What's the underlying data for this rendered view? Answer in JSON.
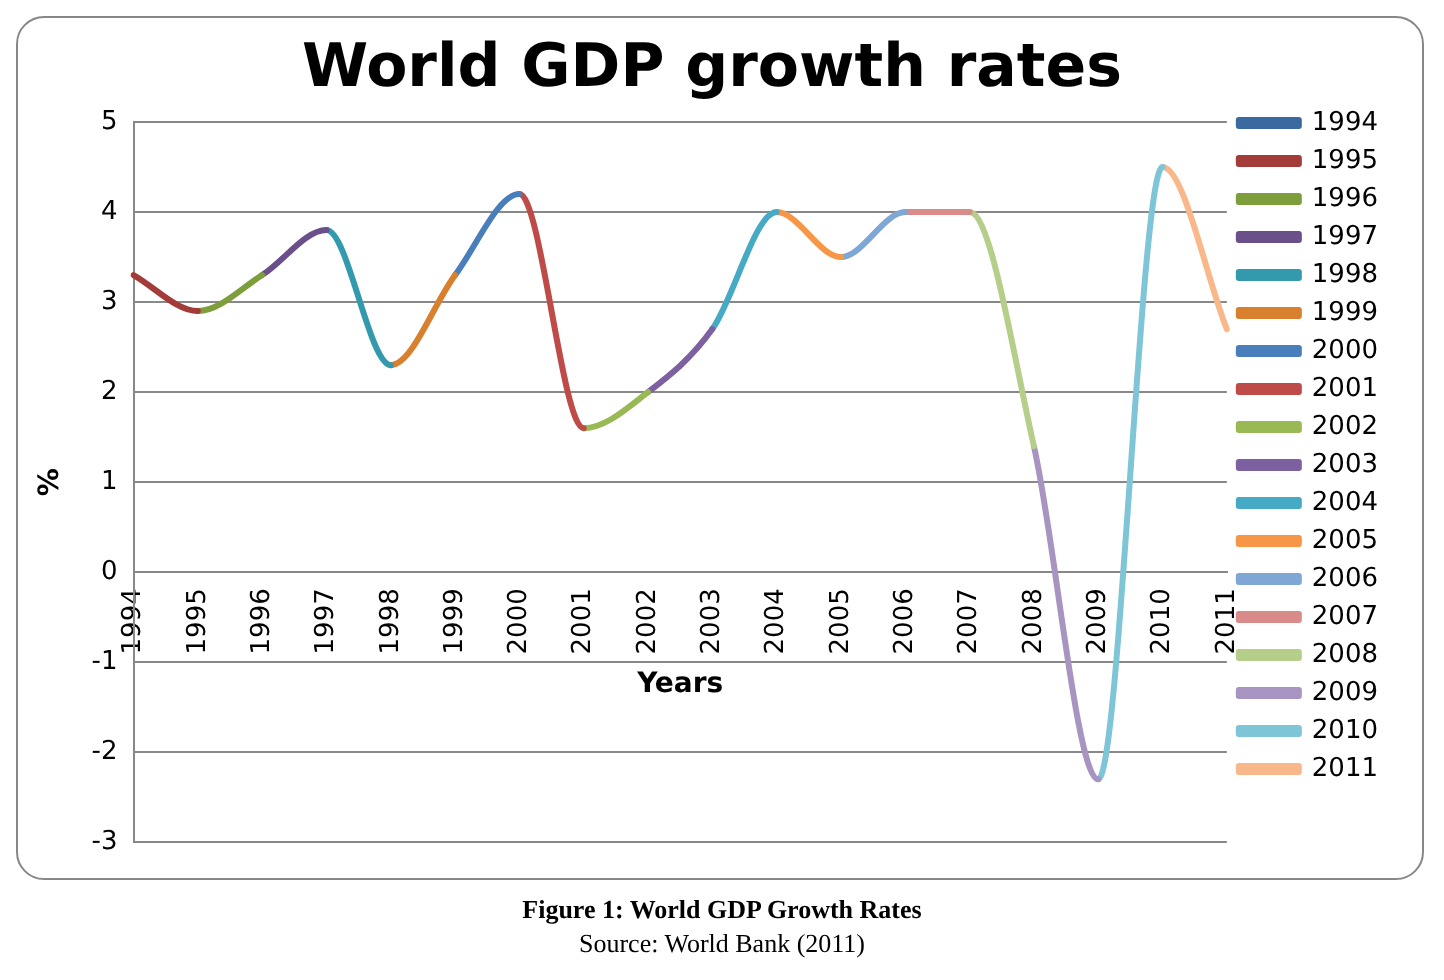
{
  "chart_data": {
    "type": "line",
    "title": "World GDP growth rates",
    "xlabel": "Years",
    "ylabel": "%",
    "categories": [
      "1994",
      "1995",
      "1996",
      "1997",
      "1998",
      "1999",
      "2000",
      "2001",
      "2002",
      "2003",
      "2004",
      "2005",
      "2006",
      "2007",
      "2008",
      "2009",
      "2010",
      "2011"
    ],
    "series": [
      {
        "name": "1994",
        "color": "#3b6aa0",
        "values": [
          null,
          null,
          null,
          null,
          null,
          null,
          null,
          null,
          null,
          null,
          null,
          null,
          null,
          null,
          null,
          null,
          null,
          null
        ]
      },
      {
        "name": "1995",
        "color": "#a33b38",
        "values": [
          3.3,
          2.9,
          null,
          null,
          null,
          null,
          null,
          null,
          null,
          null,
          null,
          null,
          null,
          null,
          null,
          null,
          null,
          null
        ]
      },
      {
        "name": "1996",
        "color": "#7e9e3c",
        "values": [
          null,
          2.9,
          3.3,
          null,
          null,
          null,
          null,
          null,
          null,
          null,
          null,
          null,
          null,
          null,
          null,
          null,
          null,
          null
        ]
      },
      {
        "name": "1997",
        "color": "#6a4f8a",
        "values": [
          null,
          null,
          3.3,
          3.8,
          null,
          null,
          null,
          null,
          null,
          null,
          null,
          null,
          null,
          null,
          null,
          null,
          null,
          null
        ]
      },
      {
        "name": "1998",
        "color": "#339aae",
        "values": [
          null,
          null,
          null,
          3.8,
          2.3,
          null,
          null,
          null,
          null,
          null,
          null,
          null,
          null,
          null,
          null,
          null,
          null,
          null
        ]
      },
      {
        "name": "1999",
        "color": "#d9802f",
        "values": [
          null,
          null,
          null,
          null,
          2.3,
          3.3,
          null,
          null,
          null,
          null,
          null,
          null,
          null,
          null,
          null,
          null,
          null,
          null
        ]
      },
      {
        "name": "2000",
        "color": "#4a7ebb",
        "values": [
          null,
          null,
          null,
          null,
          null,
          3.3,
          4.2,
          null,
          null,
          null,
          null,
          null,
          null,
          null,
          null,
          null,
          null,
          null
        ]
      },
      {
        "name": "2001",
        "color": "#be4b48",
        "values": [
          null,
          null,
          null,
          null,
          null,
          null,
          4.2,
          1.6,
          null,
          null,
          null,
          null,
          null,
          null,
          null,
          null,
          null,
          null
        ]
      },
      {
        "name": "2002",
        "color": "#98b954",
        "values": [
          null,
          null,
          null,
          null,
          null,
          null,
          null,
          1.6,
          2.0,
          null,
          null,
          null,
          null,
          null,
          null,
          null,
          null,
          null
        ]
      },
      {
        "name": "2003",
        "color": "#7d60a0",
        "values": [
          null,
          null,
          null,
          null,
          null,
          null,
          null,
          null,
          2.0,
          2.7,
          null,
          null,
          null,
          null,
          null,
          null,
          null,
          null
        ]
      },
      {
        "name": "2004",
        "color": "#46aac5",
        "values": [
          null,
          null,
          null,
          null,
          null,
          null,
          null,
          null,
          null,
          2.7,
          4.0,
          null,
          null,
          null,
          null,
          null,
          null,
          null
        ]
      },
      {
        "name": "2005",
        "color": "#f79646",
        "values": [
          null,
          null,
          null,
          null,
          null,
          null,
          null,
          null,
          null,
          null,
          4.0,
          3.5,
          null,
          null,
          null,
          null,
          null,
          null
        ]
      },
      {
        "name": "2006",
        "color": "#7fa7d6",
        "values": [
          null,
          null,
          null,
          null,
          null,
          null,
          null,
          null,
          null,
          null,
          null,
          3.5,
          4.0,
          null,
          null,
          null,
          null,
          null
        ]
      },
      {
        "name": "2007",
        "color": "#d98b89",
        "values": [
          null,
          null,
          null,
          null,
          null,
          null,
          null,
          null,
          null,
          null,
          null,
          null,
          4.0,
          4.0,
          null,
          null,
          null,
          null
        ]
      },
      {
        "name": "2008",
        "color": "#b5cf8a",
        "values": [
          null,
          null,
          null,
          null,
          null,
          null,
          null,
          null,
          null,
          null,
          null,
          null,
          null,
          4.0,
          1.4,
          null,
          null,
          null
        ]
      },
      {
        "name": "2009",
        "color": "#a794c0",
        "values": [
          null,
          null,
          null,
          null,
          null,
          null,
          null,
          null,
          null,
          null,
          null,
          null,
          null,
          null,
          1.4,
          -2.3,
          null,
          null
        ]
      },
      {
        "name": "2010",
        "color": "#7fc5d8",
        "values": [
          null,
          null,
          null,
          null,
          null,
          null,
          null,
          null,
          null,
          null,
          null,
          null,
          null,
          null,
          null,
          -2.3,
          4.5,
          null
        ]
      },
      {
        "name": "2011",
        "color": "#f9b889",
        "values": [
          null,
          null,
          null,
          null,
          null,
          null,
          null,
          null,
          null,
          null,
          null,
          null,
          null,
          null,
          null,
          null,
          4.5,
          2.7
        ]
      }
    ],
    "ylim": [
      -3,
      5
    ],
    "yticks": [
      -3,
      -2,
      -1,
      0,
      1,
      2,
      3,
      4,
      5
    ],
    "grid": "y",
    "legend": "right",
    "marker": "none",
    "annotations": [
      "Figure 1:  World GDP Growth Rates",
      "Source:  World Bank (2011)"
    ]
  }
}
